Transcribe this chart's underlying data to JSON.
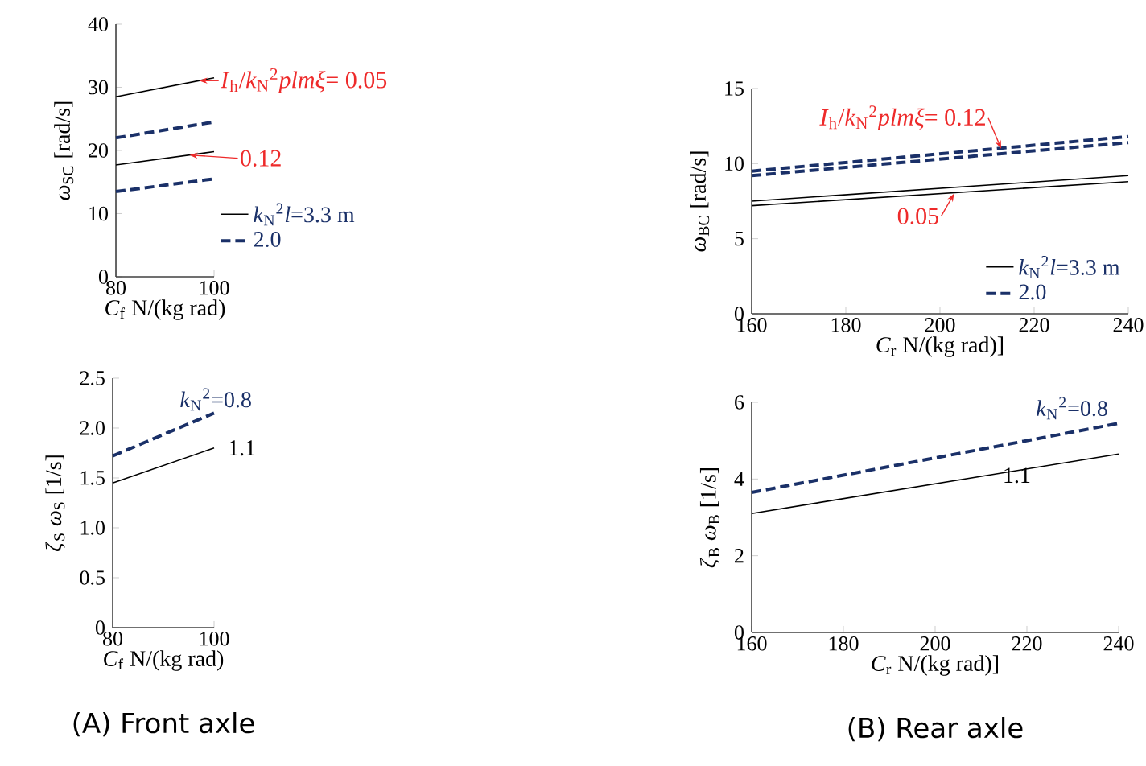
{
  "chart_data": [
    {
      "type": "line",
      "xlabel": "*C*$_{f}$   N/(kg rad)",
      "ylabel": "*ω*$_{SC}$   [rad/s]",
      "x": [
        80,
        100
      ],
      "xlim": [
        80,
        100
      ],
      "ylim": [
        0,
        40
      ],
      "xticks": [
        80,
        100
      ],
      "yticks": [
        0,
        10,
        20,
        30,
        40
      ],
      "legend": "right",
      "series": [
        {
          "name": "*k*$_{N}$$^{2}$*l*=3.3 m",
          "color": "#000000",
          "line_style": "solid",
          "values": [
            28.5,
            31.5
          ]
        },
        {
          "name": "2.0",
          "color": "#1a3068",
          "line_style": "dashed",
          "values": [
            22,
            24.5
          ]
        },
        {
          "color": "#000000",
          "line_style": "solid",
          "values": [
            17.7,
            19.8
          ]
        },
        {
          "color": "#1a3068",
          "line_style": "dashed",
          "values": [
            13.5,
            15.5
          ]
        }
      ],
      "annotations": [
        {
          "text": "*I*$_{h}$/*k*$_{N}$$^{2}$*plmξ*= 0.05",
          "x": 97,
          "y": 31.05
        },
        {
          "text": "0.12",
          "x": 95,
          "y": 19.275
        }
      ]
    },
    {
      "type": "line",
      "xlabel": "*C*$_{r}$   N/(kg rad)]",
      "ylabel": "*ω*$_{BC}$   [rad/s]",
      "x": [
        160,
        240
      ],
      "xlim": [
        160,
        240
      ],
      "ylim": [
        0,
        15
      ],
      "xticks": [
        160,
        180,
        200,
        220,
        240
      ],
      "yticks": [
        0,
        5,
        10,
        15
      ],
      "legend": "bottom right",
      "series": [
        {
          "name": "*k*$_{N}$$^{2}$*l*=3.3 m",
          "color": "#000000",
          "line_style": "solid",
          "values": [
            7.5,
            9.2
          ]
        },
        {
          "name": "2.0",
          "color": "#1a3068",
          "line_style": "dashed",
          "values": [
            9.5,
            11.8
          ]
        },
        {
          "color": "#000000",
          "line_style": "solid",
          "values": [
            7.2,
            8.8
          ]
        },
        {
          "color": "#1a3068",
          "line_style": "dashed",
          "values": [
            9.2,
            11.4
          ]
        }
      ],
      "annotations": [
        {
          "text": "*I*$_{h}$/*k*$_{N}$$^{2}$*plmξ*= 0.12",
          "x": 213,
          "y": 11.0
        },
        {
          "text": "0.05",
          "x": 203,
          "y": 8.0
        }
      ]
    },
    {
      "type": "line",
      "xlabel": "*C*$_{f}$   N/(kg rad)",
      "ylabel": "*ζ*$_{S}$ *ω*$_{S}$   [1/s]",
      "x": [
        80,
        100
      ],
      "xlim": [
        80,
        100
      ],
      "ylim": [
        0,
        2.5
      ],
      "xticks": [
        80,
        100
      ],
      "yticks": [
        0,
        0.5,
        {
          "value": 1,
          "label": "1.0"
        },
        1.5,
        {
          "value": 2,
          "label": "2.0"
        },
        2.5
      ],
      "series": [
        {
          "name": "*k*$_{N}$$^{2}$=0.8",
          "color": "#1a3068",
          "line_style": "dashed",
          "values": [
            1.72,
            2.15
          ]
        },
        {
          "name": "1.1",
          "color": "#000000",
          "line_style": "solid",
          "values": [
            1.45,
            1.8
          ]
        }
      ],
      "annotations": [
        "(A) Front axle"
      ]
    },
    {
      "type": "line",
      "xlabel": "*C*$_{r}$   N/(kg rad)]",
      "ylabel": "*ζ*$_{B}$ *ω*$_{B}$   [1/s]",
      "x": [
        160,
        240
      ],
      "xlim": [
        160,
        240
      ],
      "ylim": [
        0,
        6
      ],
      "xticks": [
        160,
        180,
        200,
        220,
        240
      ],
      "yticks": [
        0,
        2,
        4,
        6
      ],
      "series": [
        {
          "name": "*k*$_{N}$$^{2}$=0.8",
          "color": "#1a3068",
          "line_style": "dashed",
          "values": [
            3.65,
            5.45
          ]
        },
        {
          "name": "1.1",
          "color": "#000000",
          "line_style": "solid",
          "values": [
            3.1,
            4.65
          ]
        }
      ],
      "annotations": [
        "(B) Rear axle"
      ]
    }
  ]
}
